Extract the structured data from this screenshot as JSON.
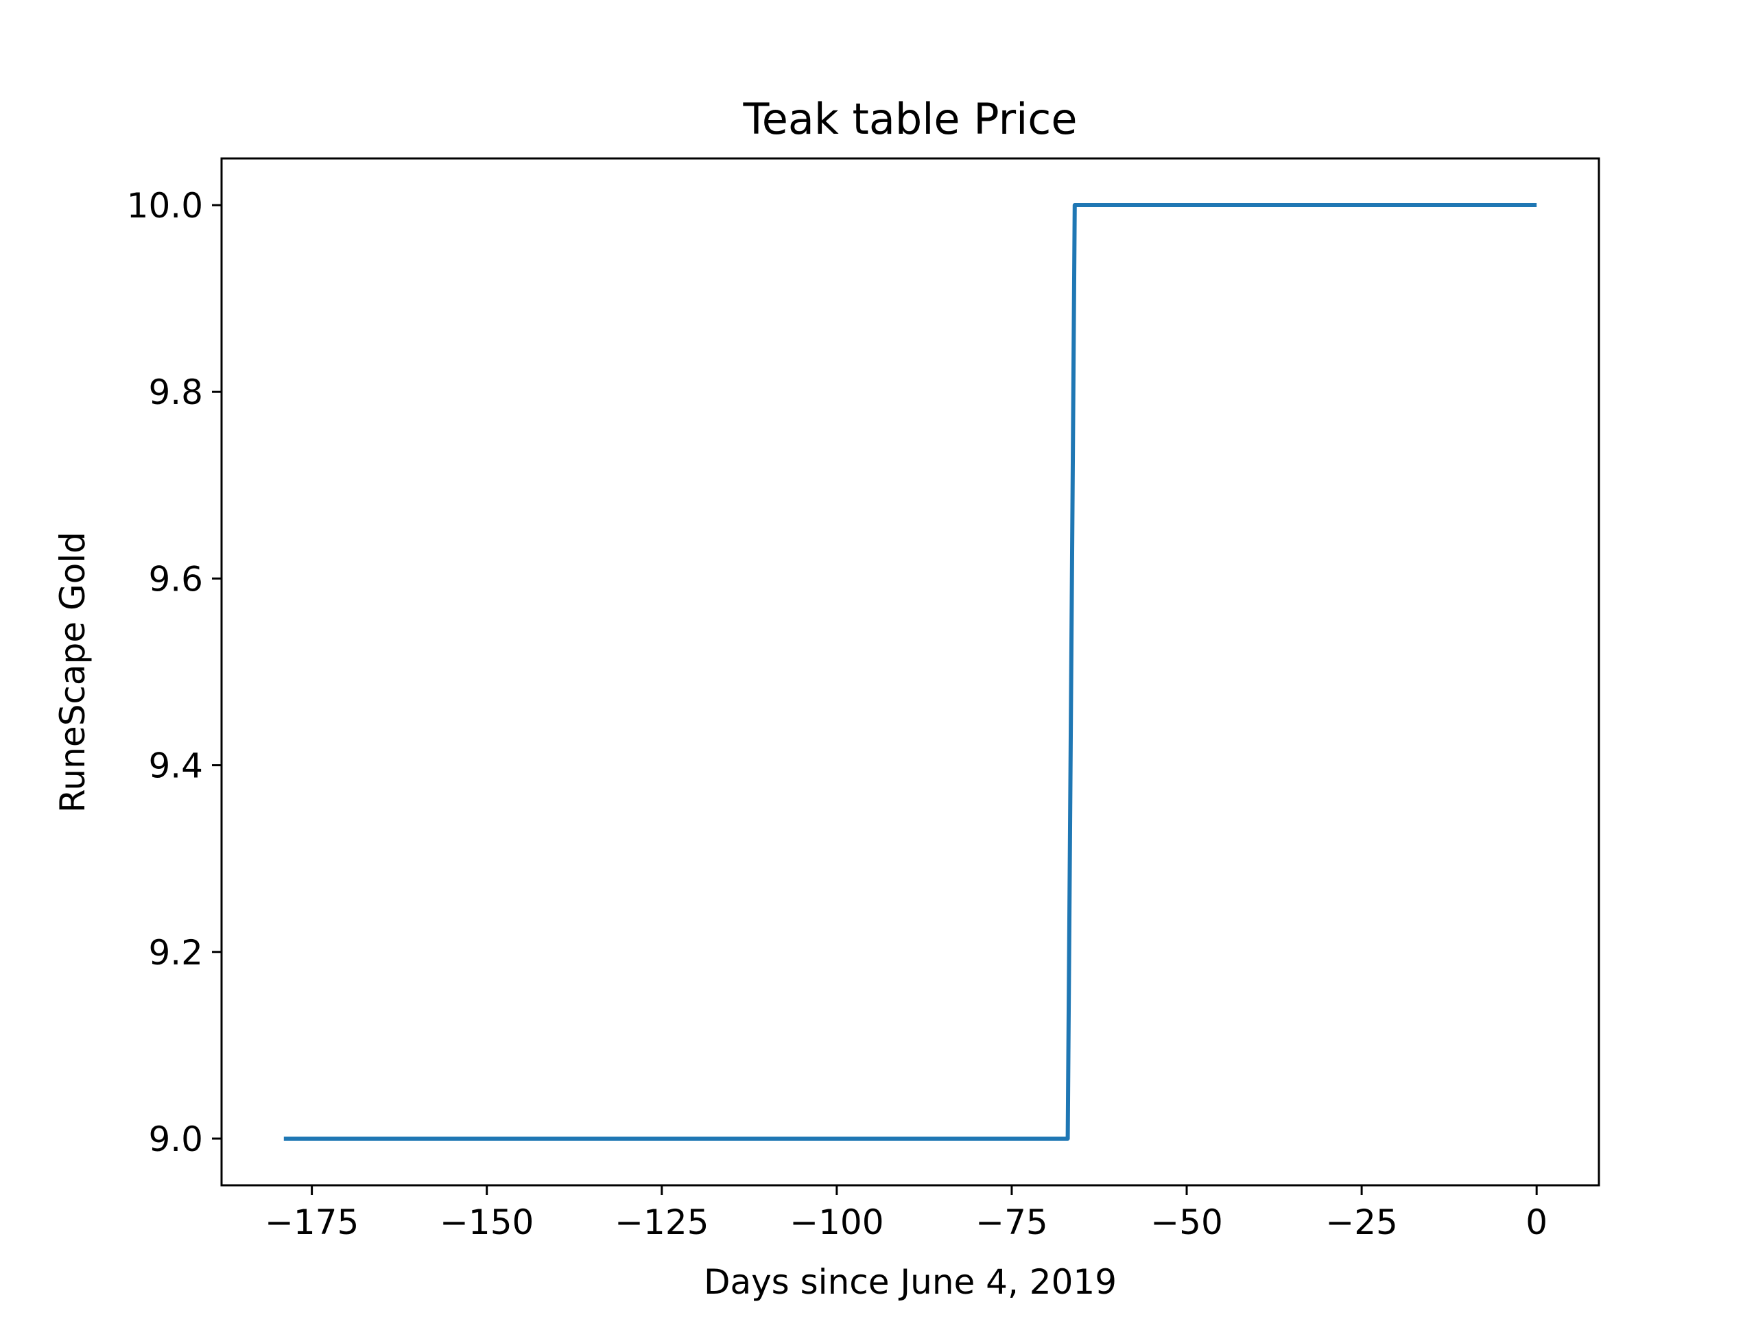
{
  "chart_data": {
    "type": "line",
    "title": "Teak table Price",
    "xlabel": "Days since June 4, 2019",
    "ylabel": "RuneScape Gold",
    "xlim": [
      -187.9,
      8.9
    ],
    "ylim": [
      8.95,
      10.05
    ],
    "x_ticks": [
      -175,
      -150,
      -125,
      -100,
      -75,
      -50,
      -25,
      0
    ],
    "x_tick_labels": [
      "−175",
      "−150",
      "−125",
      "−100",
      "−75",
      "−50",
      "−25",
      "0"
    ],
    "y_ticks": [
      9.0,
      9.2,
      9.4,
      9.6,
      9.8,
      10.0
    ],
    "y_tick_labels": [
      "9.0",
      "9.2",
      "9.4",
      "9.6",
      "9.8",
      "10.0"
    ],
    "grid": false,
    "legend": "none",
    "series": [
      {
        "color": "#1f77b4",
        "x": [
          -179,
          -67,
          -66,
          0
        ],
        "y": [
          9.0,
          9.0,
          10.0,
          10.0
        ]
      }
    ]
  }
}
